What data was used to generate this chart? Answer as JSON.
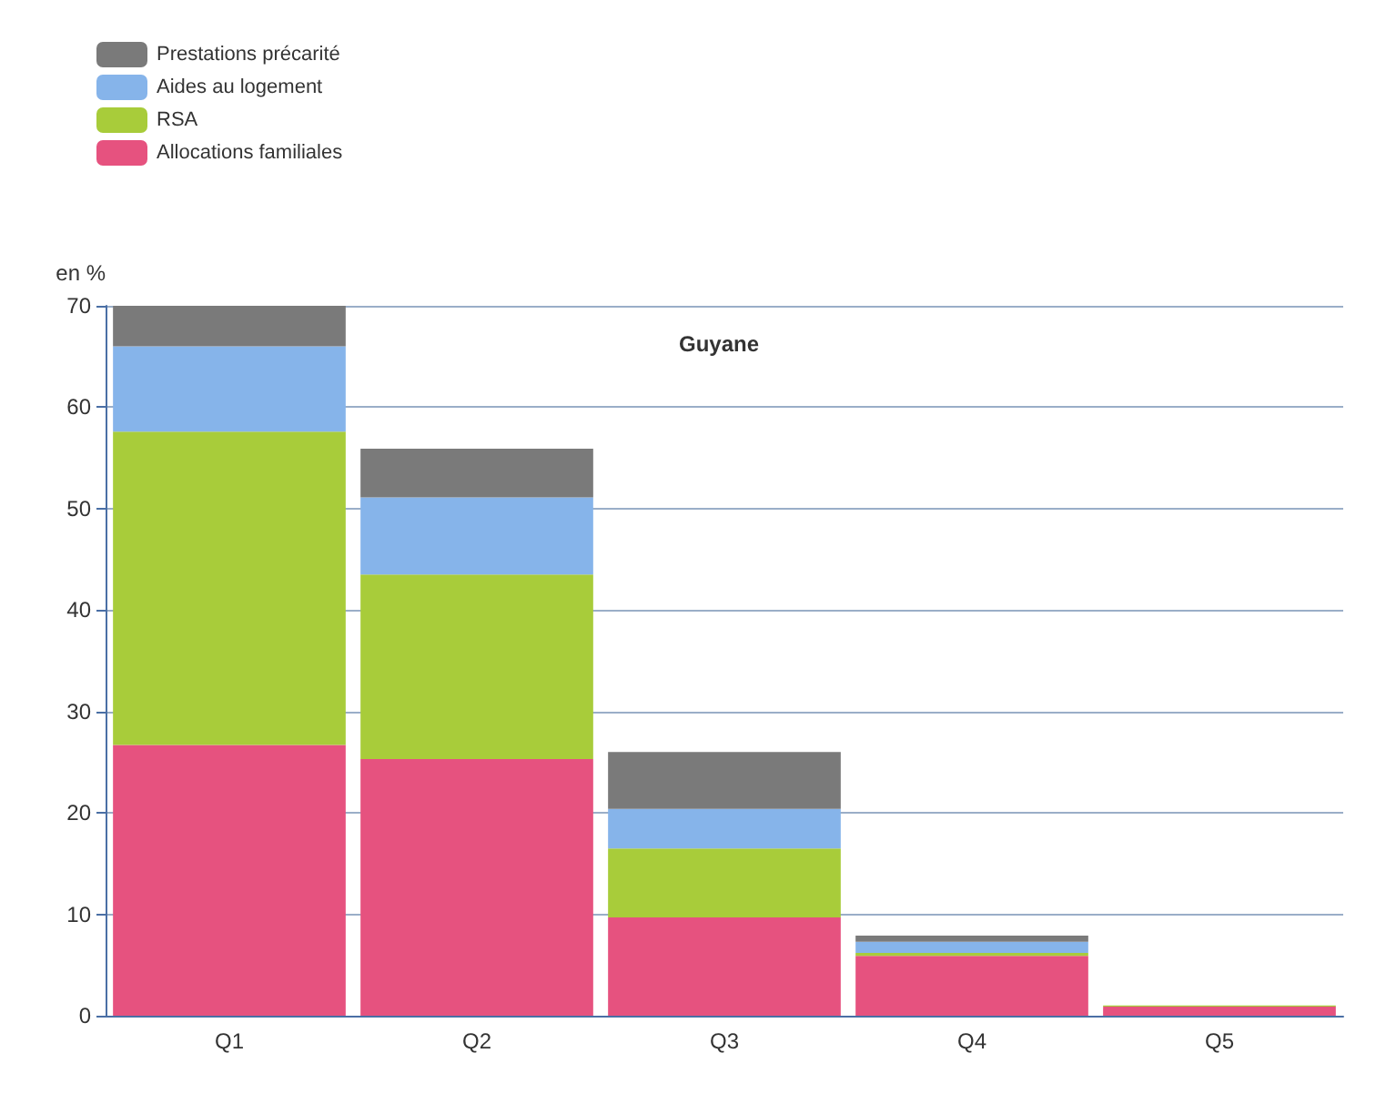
{
  "chart_data": {
    "type": "bar",
    "title": "Guyane",
    "ylabel": "en %",
    "categories": [
      "Q1",
      "Q2",
      "Q3",
      "Q4",
      "Q5"
    ],
    "stacked": true,
    "series": [
      {
        "name": "Allocations familiales",
        "color": "#e6527f",
        "values": [
          26.7,
          25.3,
          9.7,
          5.9,
          0.9
        ]
      },
      {
        "name": "RSA",
        "color": "#a8cc3a",
        "values": [
          30.9,
          18.2,
          6.8,
          0.3,
          0.1
        ]
      },
      {
        "name": "Aides au logement",
        "color": "#86b4ea",
        "values": [
          8.4,
          7.6,
          3.9,
          1.1,
          0
        ]
      },
      {
        "name": "Prestations précarité",
        "color": "#7a7a7a",
        "values": [
          4.0,
          4.8,
          5.6,
          0.6,
          0
        ]
      }
    ],
    "ylim": [
      0,
      70
    ],
    "yticks": [
      0,
      10,
      20,
      30,
      40,
      50,
      60,
      70
    ],
    "grid": "y",
    "legend": "top left"
  }
}
